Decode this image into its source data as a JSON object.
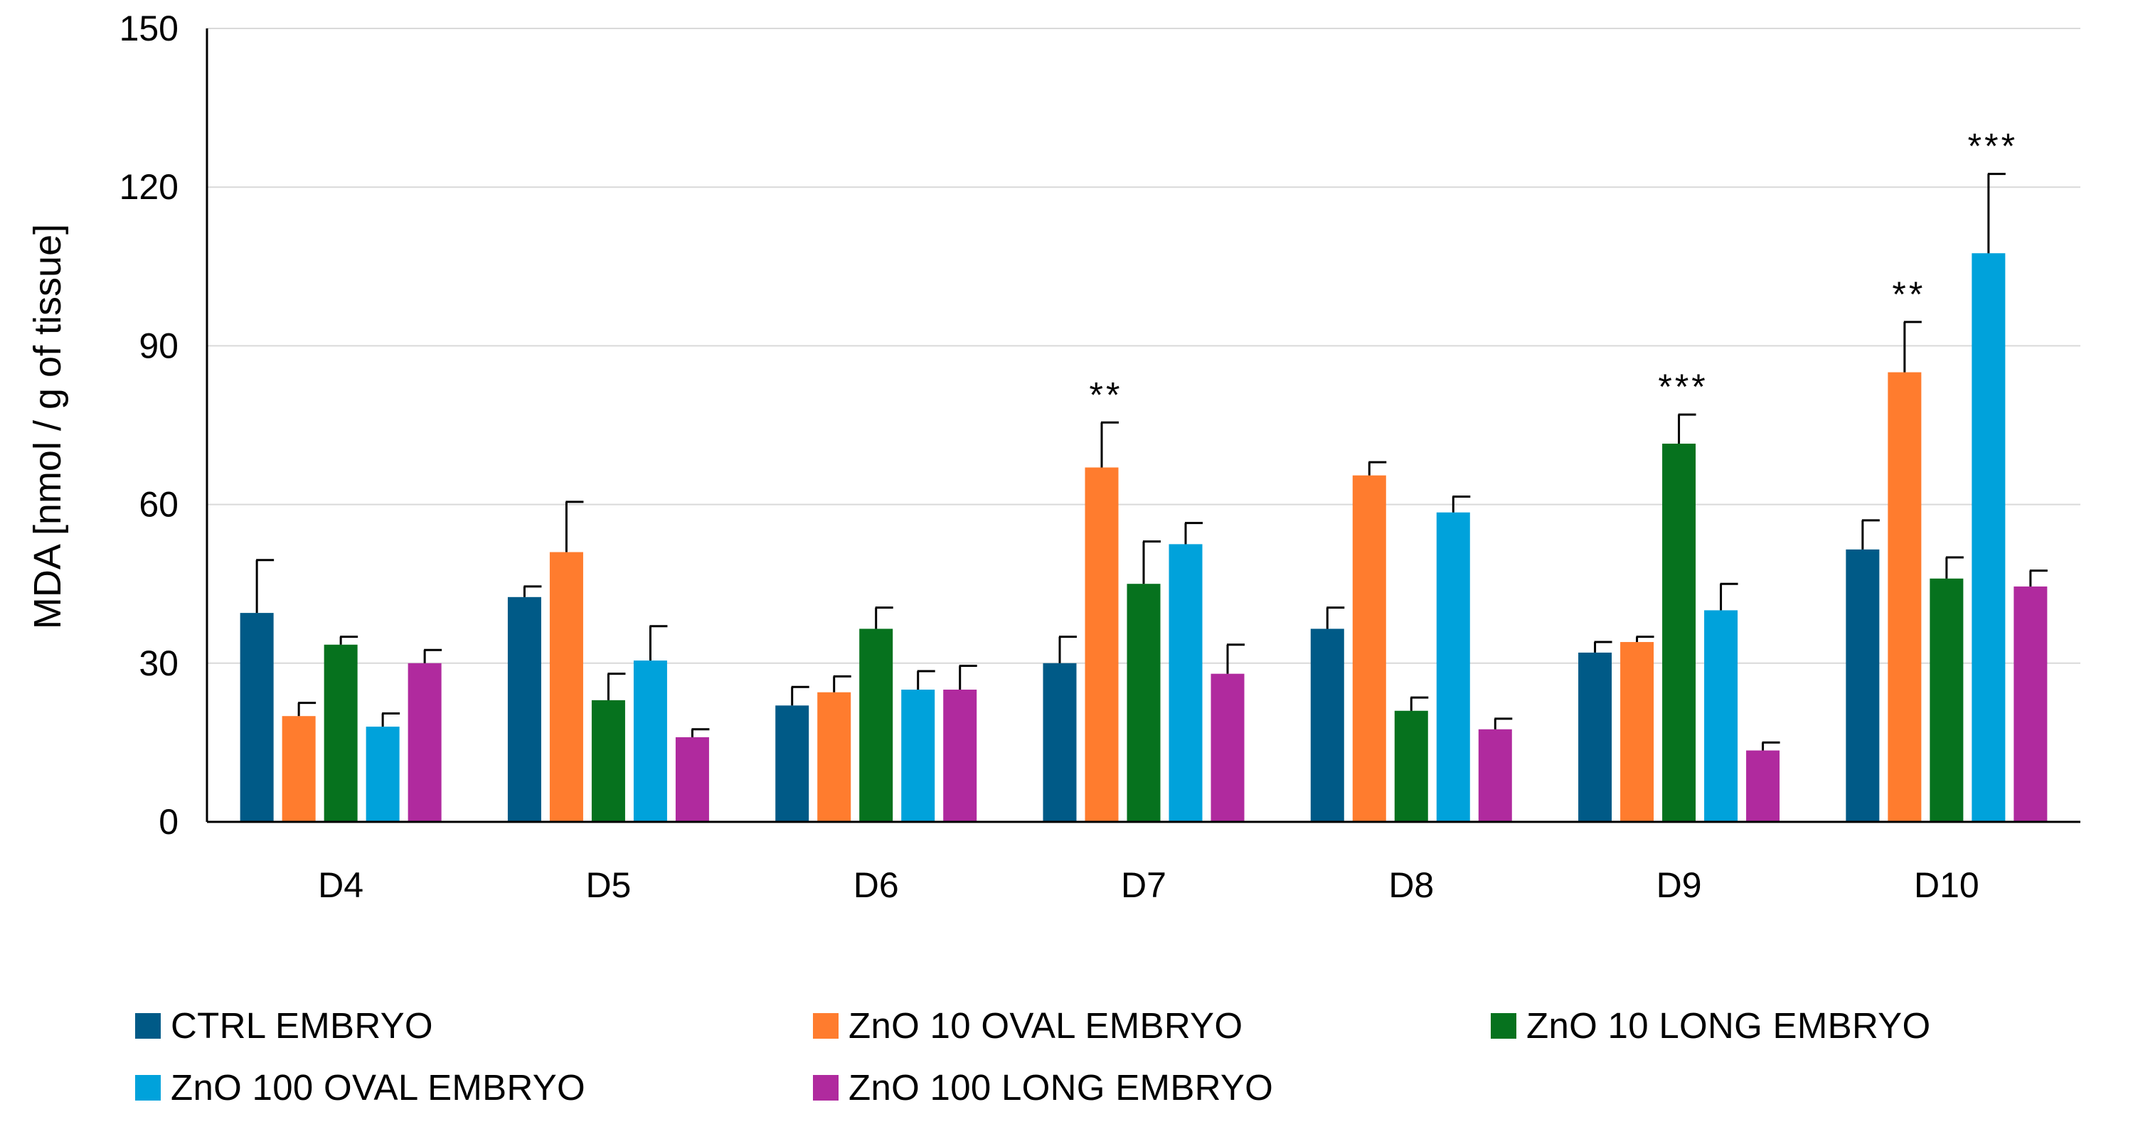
{
  "chart_data": {
    "type": "bar",
    "title": "",
    "xlabel": "",
    "ylabel": "MDA [nmol / g of tissue]",
    "ylim": [
      0,
      150
    ],
    "yticks": [
      0,
      30,
      60,
      90,
      120,
      150
    ],
    "grid": true,
    "legend_position": "bottom",
    "categories": [
      "D4",
      "D5",
      "D6",
      "D7",
      "D8",
      "D9",
      "D10"
    ],
    "series": [
      {
        "name": "CTRL EMBRYO",
        "color": "#005a87",
        "values": [
          39.5,
          42.5,
          22,
          30,
          36.5,
          32,
          51.5
        ],
        "errors": [
          10,
          2,
          3.5,
          5,
          4,
          2,
          5.5
        ],
        "annotations": [
          "",
          "",
          "",
          "",
          "",
          "",
          ""
        ]
      },
      {
        "name": "ZnO 10 OVAL EMBRYO",
        "color": "#ff7c2e",
        "values": [
          20,
          51,
          24.5,
          67,
          65.5,
          34,
          85
        ],
        "errors": [
          2.5,
          9.5,
          3,
          8.5,
          2.5,
          1,
          9.5
        ],
        "annotations": [
          "",
          "",
          "",
          "**",
          "",
          "",
          "**"
        ]
      },
      {
        "name": "ZnO 10 LONG EMBRYO",
        "color": "#06721e",
        "values": [
          33.5,
          23,
          36.5,
          45,
          21,
          71.5,
          46
        ],
        "errors": [
          1.5,
          5,
          4,
          8,
          2.5,
          5.5,
          4
        ],
        "annotations": [
          "",
          "",
          "",
          "",
          "",
          "***",
          ""
        ]
      },
      {
        "name": "ZnO 100 OVAL EMBRYO",
        "color": "#00a2db",
        "values": [
          18,
          30.5,
          25,
          52.5,
          58.5,
          40,
          107.5
        ],
        "errors": [
          2.5,
          6.5,
          3.5,
          4,
          3,
          5,
          15
        ],
        "annotations": [
          "",
          "",
          "",
          "",
          "",
          "",
          "***"
        ]
      },
      {
        "name": "ZnO 100 LONG EMBRYO",
        "color": "#b02a9e",
        "values": [
          30,
          16,
          25,
          28,
          17.5,
          13.5,
          44.5
        ],
        "errors": [
          2.5,
          1.5,
          4.5,
          5.5,
          2,
          1.5,
          3
        ],
        "annotations": [
          "",
          "",
          "",
          "",
          "",
          "",
          ""
        ]
      }
    ]
  }
}
